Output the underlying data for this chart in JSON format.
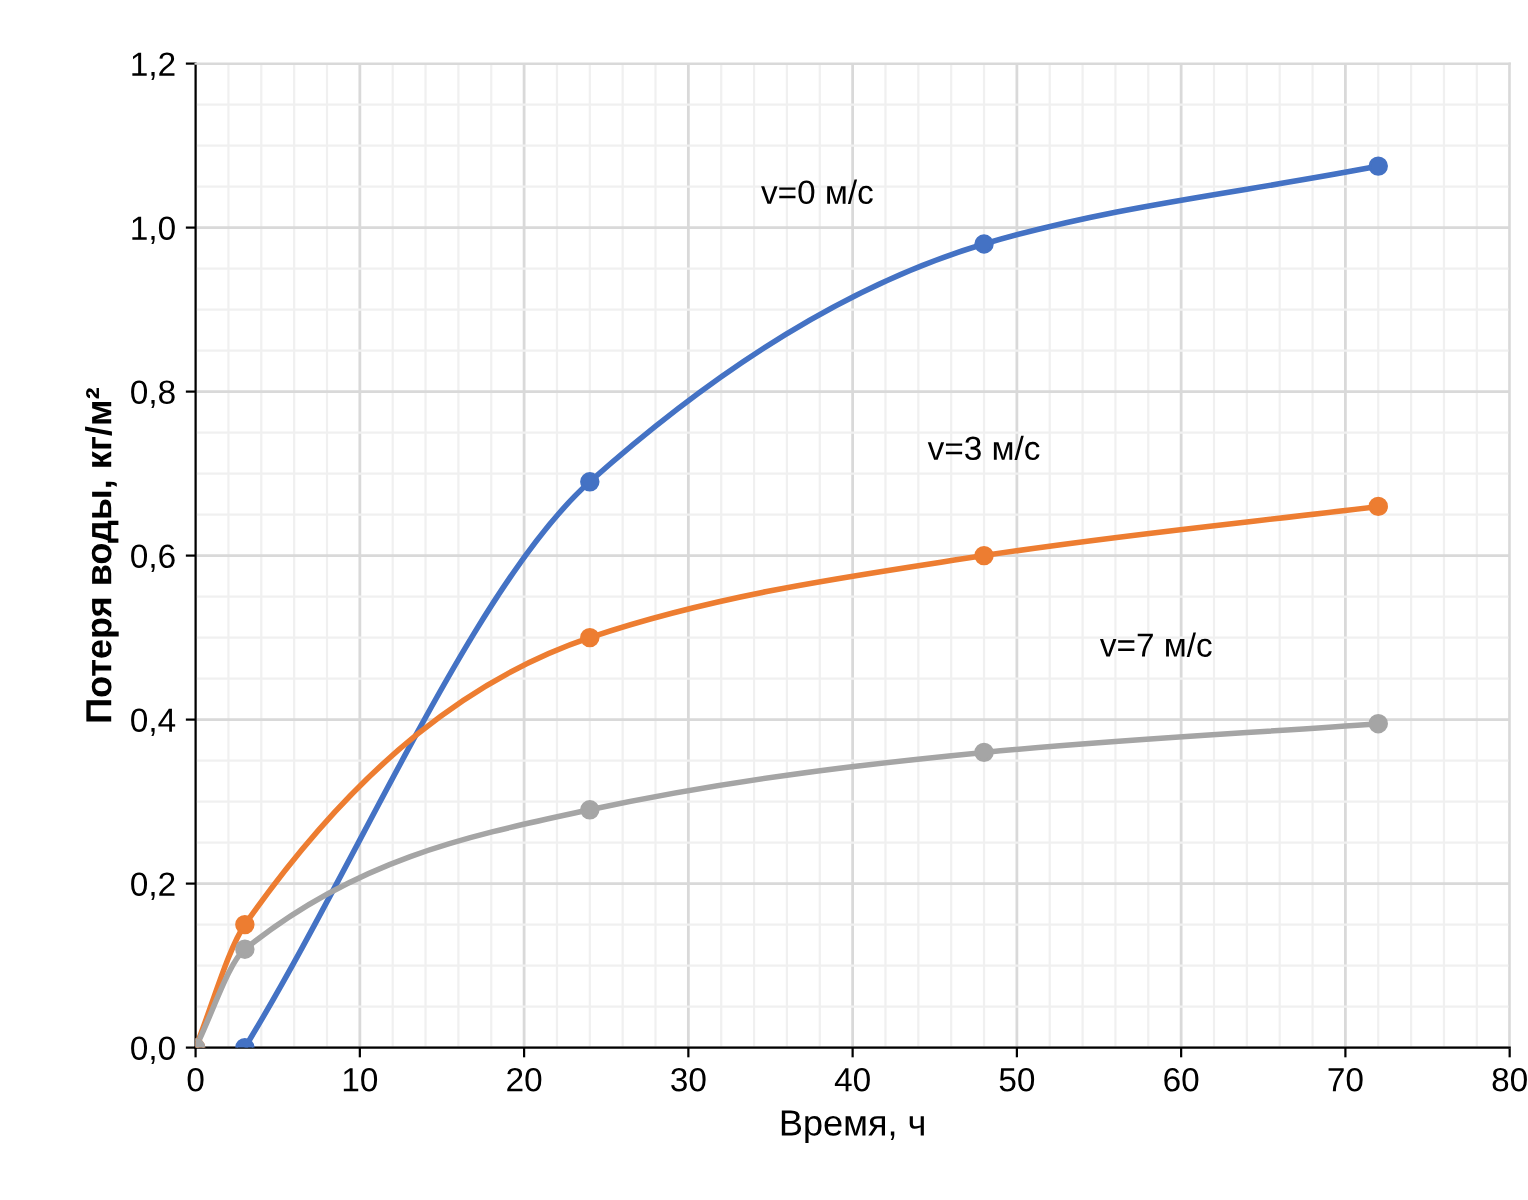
{
  "chart_data": {
    "type": "line",
    "xlabel": "Время, ч",
    "ylabel": "Потеря воды, кг/м²",
    "series": [
      {
        "name": "v=0 м/с",
        "color": "#4472c4",
        "x": [
          3,
          24,
          48,
          72
        ],
        "values": [
          0.0,
          0.69,
          0.98,
          1.075
        ]
      },
      {
        "name": "v=3 м/с",
        "color": "#ed7d31",
        "x": [
          0,
          3,
          24,
          48,
          72
        ],
        "values": [
          0.0,
          0.15,
          0.5,
          0.6,
          0.66
        ]
      },
      {
        "name": "v=7 м/с",
        "color": "#a5a5a5",
        "x": [
          0,
          3,
          24,
          48,
          72
        ],
        "values": [
          0.0,
          0.12,
          0.29,
          0.36,
          0.395
        ]
      }
    ],
    "xlim": [
      0,
      80
    ],
    "xticks": [
      0,
      10,
      20,
      30,
      40,
      50,
      60,
      70,
      80
    ],
    "ylim": [
      0,
      1.2
    ],
    "yticks": [
      {
        "value": 0,
        "label": "0,0"
      },
      {
        "value": 0.2,
        "label": "0,2"
      },
      {
        "value": 0.4,
        "label": "0,4"
      },
      {
        "value": 0.6,
        "label": "0,6"
      },
      {
        "value": 0.8,
        "label": "0,8"
      },
      {
        "value": 1.0,
        "label": "1,0"
      },
      {
        "value": 1.2,
        "label": "1,2"
      }
    ],
    "grid": true,
    "marker": "circle",
    "line_style": "solid",
    "legend": false
  }
}
